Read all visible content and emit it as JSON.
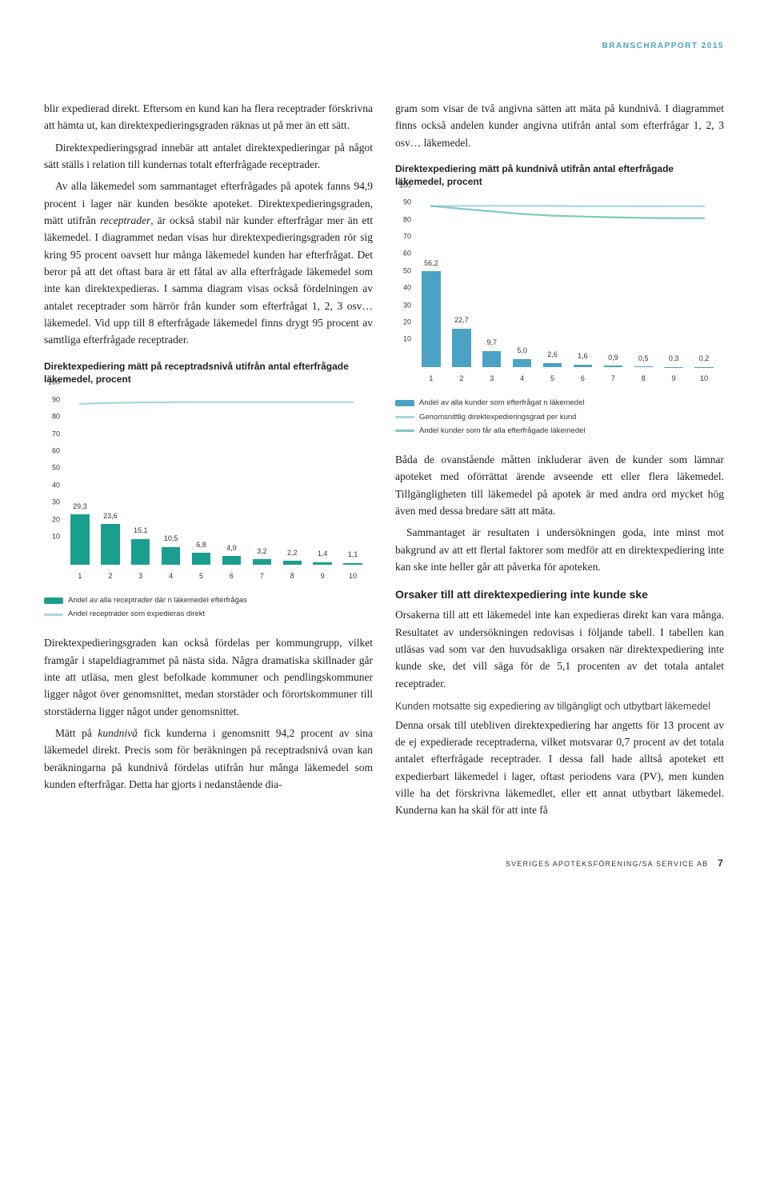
{
  "report_header": "BRANSCHRAPPORT 2015",
  "left": {
    "p1": "blir expedierad direkt. Eftersom en kund kan ha flera receptrader förskrivna att hämta ut, kan direktexpedieringsgraden räknas ut på mer än ett sätt.",
    "p2": "Direktexpedieringsgrad innebär att antalet direktexpedieringar på något sätt ställs i relation till kundernas totalt efterfrågade receptrader.",
    "p3a": "Av alla läkemedel som sammantaget efterfrågades på apotek fanns 94,9 procent i lager när kunden besökte apoteket. Direktexpedieringsgraden, mätt utifrån ",
    "p3b": "receptrader",
    "p3c": ", är också stabil när kunder efterfrågar mer än ett läkemedel. I diagrammet nedan visas hur direktexpedieringsgraden rör sig kring 95 procent oavsett hur många läkemedel kunden har efterfrågat. Det beror på att det oftast bara är ett fåtal av alla efterfrågade läkemedel som inte kan direktexpedieras. I samma diagram visas också fördelningen av antalet receptrader som härrör från kunder som efterfrågat 1, 2, 3 osv… läkemedel. Vid upp till 8 efterfrågade läkemedel finns drygt 95 procent av samtliga efterfrågade receptrader.",
    "chart1": {
      "title": "Direktexpediering mätt på receptradsnivå utifrån antal efterfrågade läkemedel, procent",
      "categories": [
        "1",
        "2",
        "3",
        "4",
        "5",
        "6",
        "7",
        "8",
        "9",
        "10"
      ],
      "bars": [
        29.3,
        23.6,
        15.1,
        10.5,
        6.8,
        4.9,
        3.2,
        2.2,
        1.4,
        1.1
      ],
      "bar_labels": [
        "29,3",
        "23,6",
        "15,1",
        "10,5",
        "6,8",
        "4,9",
        "3,2",
        "2,2",
        "1,4",
        "1,1"
      ],
      "line": [
        94.0,
        94.5,
        94.8,
        94.9,
        95.0,
        95.0,
        95.0,
        95.0,
        95.0,
        95.0
      ],
      "ymax": 100,
      "yticks": [
        10,
        20,
        30,
        40,
        50,
        60,
        70,
        80,
        90,
        100
      ],
      "bar_color": "#1a9e8e",
      "line_color": "#a8d5e3",
      "legend": [
        {
          "type": "bar",
          "color": "#1a9e8e",
          "label": "Andel av alla receptrader där n läkemedel efterfrågas"
        },
        {
          "type": "line",
          "color": "#a8d5e3",
          "label": "Andel receptrader som expedieras direkt"
        }
      ]
    },
    "p4a": "Direktexpedieringsgraden kan också fördelas per kommungrupp, vilket framgår i stapeldiagrammet på nästa sida. Några dramatiska skillnader går inte att utläsa, men glest befolkade kommuner och pendlingskommuner ligger något över genomsnittet, medan storstäder och förortskommuner till storstäderna ligger något under genomsnittet.",
    "p4b_a": "Mätt på ",
    "p4b_b": "kundnivå",
    "p4b_c": " fick kunderna i genomsnitt 94,2 procent av sina läkemedel direkt. Precis som för beräkningen på receptradsnivå ovan kan beräkningarna på kundnivå fördelas utifrån hur många läkemedel som kunden efterfrågar. Detta har gjorts i nedanstående dia-"
  },
  "right": {
    "p1": "gram som visar de två angivna sätten att mäta på kundnivå. I diagrammet finns också andelen kunder angivna utifrån antal som efterfrågar 1, 2, 3 osv… läkemedel.",
    "chart2": {
      "title": "Direktexpediering mätt på kundnivå utifrån antal efterfrågade läkemedel, procent",
      "categories": [
        "1",
        "2",
        "3",
        "4",
        "5",
        "6",
        "7",
        "8",
        "9",
        "10"
      ],
      "bars": [
        56.2,
        22.7,
        9.7,
        5.0,
        2.6,
        1.6,
        0.9,
        0.5,
        0.3,
        0.2
      ],
      "bar_labels": [
        "56,2",
        "22,7",
        "9,7",
        "5,0",
        "2,6",
        "1,6",
        "0,9",
        "0,5",
        "0,3",
        "0,2"
      ],
      "line1": [
        94.0,
        94.2,
        94.3,
        94.2,
        94.2,
        94.0,
        94.0,
        94.0,
        94.0,
        94.0
      ],
      "line2": [
        94.2,
        92.5,
        91.0,
        89.5,
        88.5,
        88.0,
        87.5,
        87.2,
        87.0,
        87.0
      ],
      "ymax": 100,
      "yticks": [
        10,
        20,
        30,
        40,
        50,
        60,
        70,
        80,
        90,
        100
      ],
      "bar_color": "#4aa3c4",
      "line1_color": "#a8d5e3",
      "line2_color": "#7fc9bf",
      "legend": [
        {
          "type": "bar",
          "color": "#4aa3c4",
          "label": "Andel av alla kunder som efterfrågat n läkemedel"
        },
        {
          "type": "line",
          "color": "#a8d5e3",
          "label": "Genomsnittlig direktexpedieringsgrad per kund"
        },
        {
          "type": "line",
          "color": "#7fc9bf",
          "label": "Andel kunder som får alla efterfrågade läkemedel"
        }
      ]
    },
    "p2": "Båda de ovanstående måtten inkluderar även de kunder som lämnar apoteket med oförrättat ärende avseende ett eller flera läkemedel. Tillgängligheten till läkemedel på apotek är med andra ord mycket hög även med dessa bredare sätt att mäta.",
    "p3": "Sammantaget är resultaten i undersökningen goda, inte minst mot bakgrund av att ett flertal faktorer som medför att en direktexpediering inte kan ske inte heller går att påverka för apoteken.",
    "h1": "Orsaker till att direktexpediering inte kunde ske",
    "p4": "Orsakerna till att ett läkemedel inte kan expedieras direkt kan vara många. Resultatet av undersökningen redovisas i följande tabell. I tabellen kan utläsas vad som var den huvudsakliga orsaken när direktexpediering inte kunde ske, det vill säga för de 5,1 procenten av det totala antalet receptrader.",
    "h2": "Kunden motsatte sig expediering av tillgängligt och utbytbart läkemedel",
    "p5": "Denna orsak till utebliven direktexpediering har angetts för 13 procent av de ej expedierade receptraderna, vilket motsvarar 0,7 procent av det totala antalet efterfrågade receptrader. I dessa fall hade alltså apoteket ett expedierbart läkemedel i lager, oftast periodens vara (PV), men kunden ville ha det förskrivna läkemedlet, eller ett annat utbytbart läkemedel. Kunderna kan ha skäl för att inte få"
  },
  "footer": {
    "org": "SVERIGES APOTEKSFÖRENING/SA SERVICE AB",
    "page": "7"
  }
}
